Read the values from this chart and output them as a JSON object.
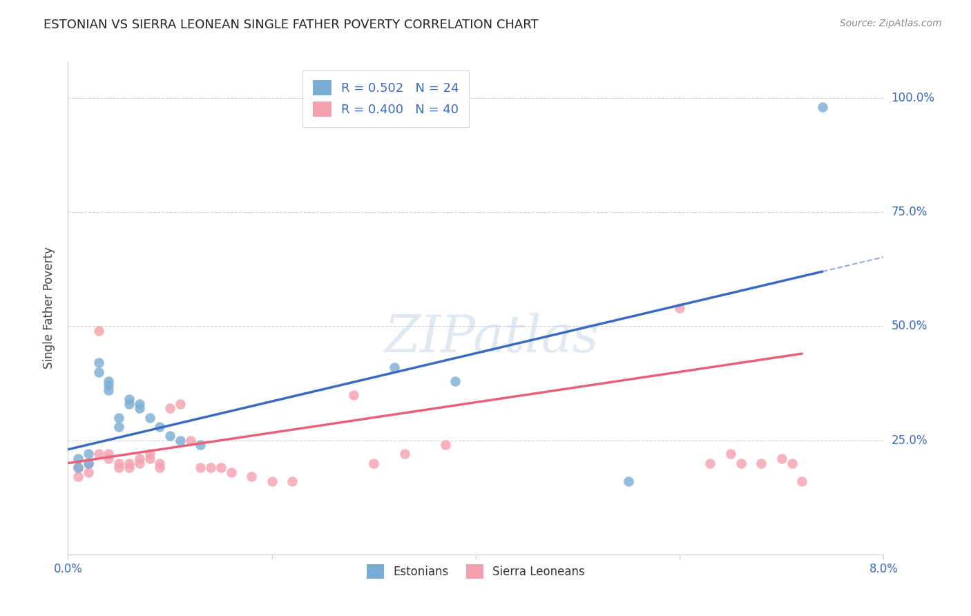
{
  "title": "ESTONIAN VS SIERRA LEONEAN SINGLE FATHER POVERTY CORRELATION CHART",
  "source": "Source: ZipAtlas.com",
  "ylabel": "Single Father Poverty",
  "xlim": [
    0.0,
    0.08
  ],
  "ylim": [
    0.0,
    1.08
  ],
  "legend1_R": "0.502",
  "legend1_N": "24",
  "legend2_R": "0.400",
  "legend2_N": "40",
  "legend_title_estonians": "Estonians",
  "legend_title_sierra": "Sierra Leoneans",
  "estonian_color": "#7aadd4",
  "sierra_color": "#f4a0b0",
  "trendline_estonian_color": "#3a6abf",
  "trendline_sierra_color": "#e8607a",
  "background_color": "#ffffff",
  "estonian_points_x": [
    0.001,
    0.001,
    0.002,
    0.002,
    0.003,
    0.003,
    0.004,
    0.004,
    0.004,
    0.005,
    0.005,
    0.006,
    0.006,
    0.007,
    0.007,
    0.008,
    0.009,
    0.01,
    0.011,
    0.013,
    0.032,
    0.038,
    0.055,
    0.074
  ],
  "estonian_points_y": [
    0.19,
    0.21,
    0.2,
    0.22,
    0.42,
    0.4,
    0.38,
    0.37,
    0.36,
    0.3,
    0.28,
    0.34,
    0.33,
    0.33,
    0.32,
    0.3,
    0.28,
    0.26,
    0.25,
    0.24,
    0.41,
    0.38,
    0.16,
    0.98
  ],
  "sierra_points_x": [
    0.001,
    0.001,
    0.002,
    0.002,
    0.003,
    0.003,
    0.004,
    0.004,
    0.005,
    0.005,
    0.006,
    0.006,
    0.007,
    0.007,
    0.008,
    0.008,
    0.009,
    0.009,
    0.01,
    0.011,
    0.012,
    0.013,
    0.014,
    0.015,
    0.016,
    0.018,
    0.02,
    0.022,
    0.028,
    0.03,
    0.033,
    0.037,
    0.06,
    0.063,
    0.065,
    0.066,
    0.068,
    0.07,
    0.071,
    0.072
  ],
  "sierra_points_y": [
    0.19,
    0.17,
    0.2,
    0.18,
    0.49,
    0.22,
    0.22,
    0.21,
    0.2,
    0.19,
    0.19,
    0.2,
    0.21,
    0.2,
    0.22,
    0.21,
    0.2,
    0.19,
    0.32,
    0.33,
    0.25,
    0.19,
    0.19,
    0.19,
    0.18,
    0.17,
    0.16,
    0.16,
    0.35,
    0.2,
    0.22,
    0.24,
    0.54,
    0.2,
    0.22,
    0.2,
    0.2,
    0.21,
    0.2,
    0.16
  ],
  "trendline_est_x0": 0.0,
  "trendline_est_y0": 0.23,
  "trendline_est_x1": 0.074,
  "trendline_est_y1": 0.62,
  "trendline_sie_x0": 0.0,
  "trendline_sie_y0": 0.2,
  "trendline_sie_x1": 0.072,
  "trendline_sie_y1": 0.44
}
